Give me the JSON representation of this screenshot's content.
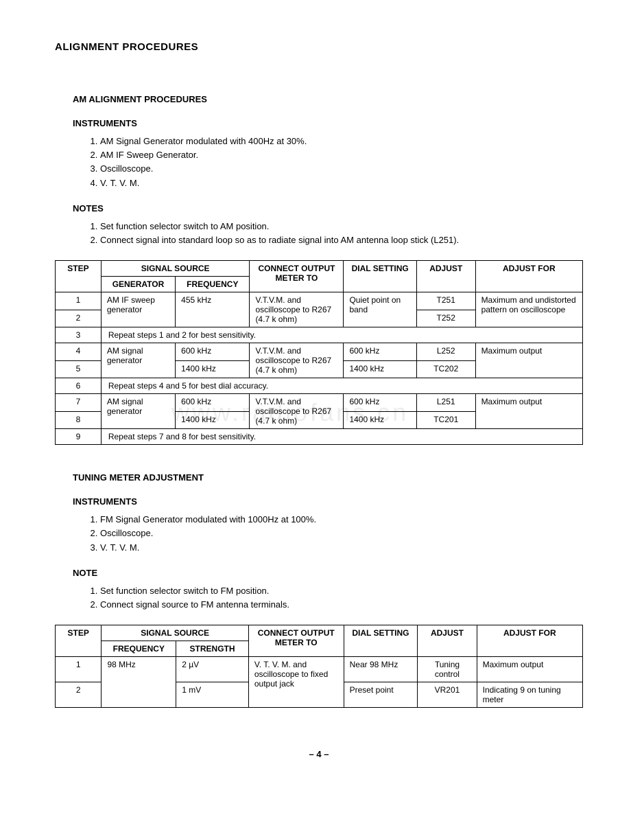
{
  "page_title": "ALIGNMENT PROCEDURES",
  "watermark": "www.radiofans.cn",
  "section1": {
    "title": "AM ALIGNMENT PROCEDURES",
    "instruments_label": "INSTRUMENTS",
    "instruments": [
      "AM Signal Generator modulated with 400Hz at 30%.",
      "AM IF Sweep Generator.",
      "Oscilloscope.",
      "V. T. V. M."
    ],
    "notes_label": "NOTES",
    "notes": [
      "Set function selector switch to AM position.",
      "Connect signal into standard loop so as to radiate signal into AM antenna loop stick (L251)."
    ]
  },
  "table1": {
    "headers": {
      "step": "STEP",
      "signal_source": "SIGNAL SOURCE",
      "generator": "GENERATOR",
      "frequency": "FREQUENCY",
      "meter": "CONNECT OUTPUT METER TO",
      "dial": "DIAL SETTING",
      "adjust": "ADJUST",
      "adjust_for": "ADJUST FOR"
    },
    "rows": [
      {
        "step": "1",
        "gen": "AM IF sweep generator",
        "freq": "455 kHz",
        "meter": "V.T.V.M. and oscilloscope to R267 (4.7 k ohm)",
        "dial": "Quiet point on band",
        "adjust": "T251",
        "for": "Maximum and undistorted pattern on oscilloscope"
      },
      {
        "step": "2",
        "adjust": "T252"
      },
      {
        "step": "3",
        "repeat": "Repeat steps 1 and 2 for best sensitivity."
      },
      {
        "step": "4",
        "gen": "AM signal generator",
        "freq": "600 kHz",
        "meter": "V.T.V.M. and oscilloscope to R267 (4.7 k ohm)",
        "dial": "600 kHz",
        "adjust": "L252",
        "for": "Maximum output"
      },
      {
        "step": "5",
        "freq": "1400 kHz",
        "dial": "1400 kHz",
        "adjust": "TC202"
      },
      {
        "step": "6",
        "repeat": "Repeat steps 4 and 5 for best dial accuracy."
      },
      {
        "step": "7",
        "gen": "AM signal generator",
        "freq": "600 kHz",
        "meter": "V.T.V.M. and oscilloscope to R267 (4.7 k ohm)",
        "dial": "600 kHz",
        "adjust": "L251",
        "for": "Maximum output"
      },
      {
        "step": "8",
        "freq": "1400 kHz",
        "dial": "1400 kHz",
        "adjust": "TC201"
      },
      {
        "step": "9",
        "repeat": "Repeat steps 7 and 8 for best sensitivity."
      }
    ]
  },
  "section2": {
    "title": "TUNING METER ADJUSTMENT",
    "instruments_label": "INSTRUMENTS",
    "instruments": [
      "FM Signal Generator modulated with 1000Hz at 100%.",
      "Oscilloscope.",
      "V. T. V. M."
    ],
    "notes_label": "NOTE",
    "notes": [
      "Set function selector switch to FM position.",
      "Connect signal source to FM antenna terminals."
    ]
  },
  "table2": {
    "headers": {
      "step": "STEP",
      "signal_source": "SIGNAL SOURCE",
      "frequency": "FREQUENCY",
      "strength": "STRENGTH",
      "meter": "CONNECT OUTPUT METER TO",
      "dial": "DIAL SETTING",
      "adjust": "ADJUST",
      "adjust_for": "ADJUST FOR"
    },
    "rows": [
      {
        "step": "1",
        "freq": "98 MHz",
        "strength": "2 µV",
        "meter": "V. T. V. M. and oscilloscope to fixed output jack",
        "dial": "Near 98 MHz",
        "adjust": "Tuning control",
        "for": "Maximum output"
      },
      {
        "step": "2",
        "strength": "1 mV",
        "dial": "Preset point",
        "adjust": "VR201",
        "for": "Indicating 9 on tuning meter"
      }
    ]
  },
  "page_number": "– 4 –",
  "styles": {
    "font_family": "Arial, Helvetica, sans-serif",
    "body_fontsize": 13,
    "table_fontsize": 12,
    "text_color": "#000000",
    "background_color": "#ffffff",
    "border_color": "#000000",
    "watermark_color": "#cccccc"
  }
}
